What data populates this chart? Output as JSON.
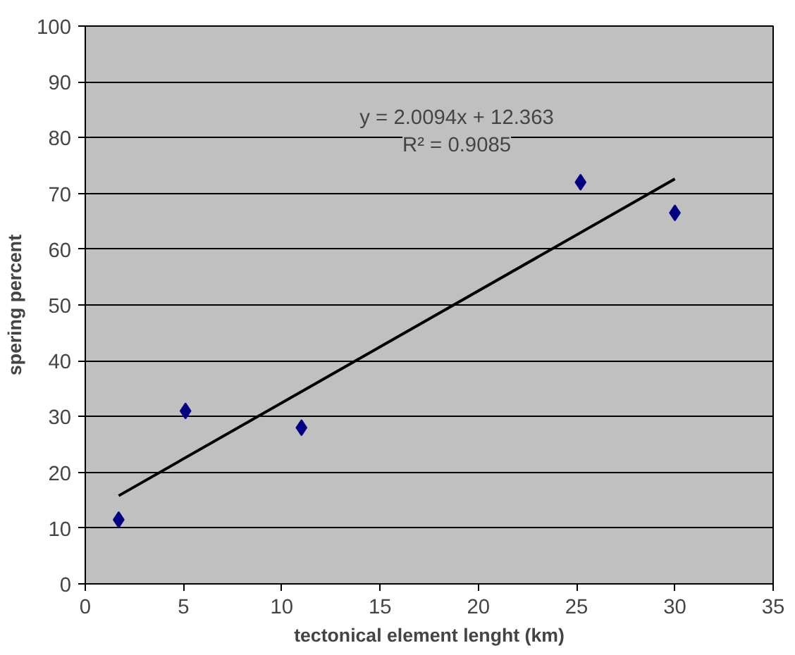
{
  "chart_data": {
    "type": "scatter",
    "xlabel": "tectonical element lenght (km)",
    "ylabel": "spering percent",
    "xlim": [
      0,
      35
    ],
    "ylim": [
      0,
      100
    ],
    "xticks": [
      0,
      5,
      10,
      15,
      20,
      25,
      30,
      35
    ],
    "yticks": [
      0,
      10,
      20,
      30,
      40,
      50,
      60,
      70,
      80,
      90,
      100
    ],
    "grid": "y",
    "series": [
      {
        "marker": "diamond",
        "color": "#000080",
        "x": [
          1.7,
          5.1,
          11,
          25.2,
          30
        ],
        "values": [
          11.5,
          31,
          28,
          72,
          66.5
        ]
      },
      {
        "type": "line",
        "marker": "none",
        "color": "#000000",
        "x": [
          1.7,
          30
        ],
        "values": [
          15.8,
          72.6
        ],
        "line_style": "solid"
      }
    ],
    "annotations": [
      "y = 2.0094x + 12.363",
      "R² = 0.9085"
    ]
  }
}
